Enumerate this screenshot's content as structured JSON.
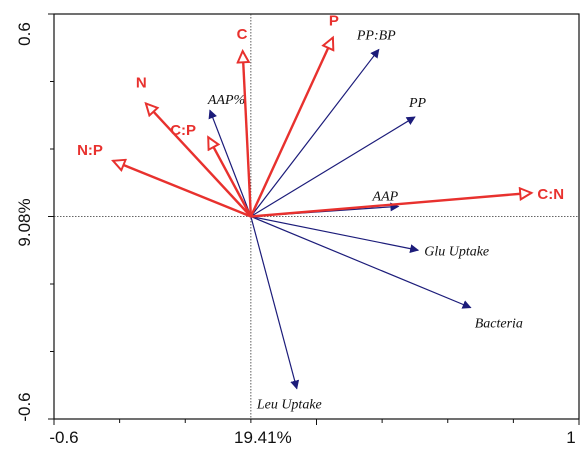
{
  "chart_data": {
    "type": "biplot",
    "xlabel": "19.41%",
    "ylabel": "9.08%",
    "xlim": [
      -0.6,
      1.0
    ],
    "ylim": [
      -0.6,
      0.6
    ],
    "x_ticks": [
      -0.6,
      1.0
    ],
    "y_ticks": [
      -0.6,
      0.6
    ],
    "colors": {
      "environmental": "#e8312e",
      "response": "#1c1c7a",
      "axis": "#111111"
    },
    "environmental_vectors": [
      {
        "name": "N:P",
        "x": -0.42,
        "y": 0.165
      },
      {
        "name": "N",
        "x": -0.32,
        "y": 0.335
      },
      {
        "name": "C:P",
        "x": -0.13,
        "y": 0.235
      },
      {
        "name": "C",
        "x": -0.025,
        "y": 0.49
      },
      {
        "name": "P",
        "x": 0.25,
        "y": 0.53
      },
      {
        "name": "C:N",
        "x": 0.855,
        "y": 0.07
      }
    ],
    "response_vectors": [
      {
        "name": "AAP%",
        "x": -0.125,
        "y": 0.315
      },
      {
        "name": "PP:BP",
        "x": 0.39,
        "y": 0.495
      },
      {
        "name": "PP",
        "x": 0.5,
        "y": 0.295
      },
      {
        "name": "AAP",
        "x": 0.45,
        "y": 0.03
      },
      {
        "name": "Glu Uptake",
        "x": 0.51,
        "y": -0.1
      },
      {
        "name": "Bacteria",
        "x": 0.67,
        "y": -0.27
      },
      {
        "name": "Leu Uptake",
        "x": 0.14,
        "y": -0.51
      }
    ]
  }
}
